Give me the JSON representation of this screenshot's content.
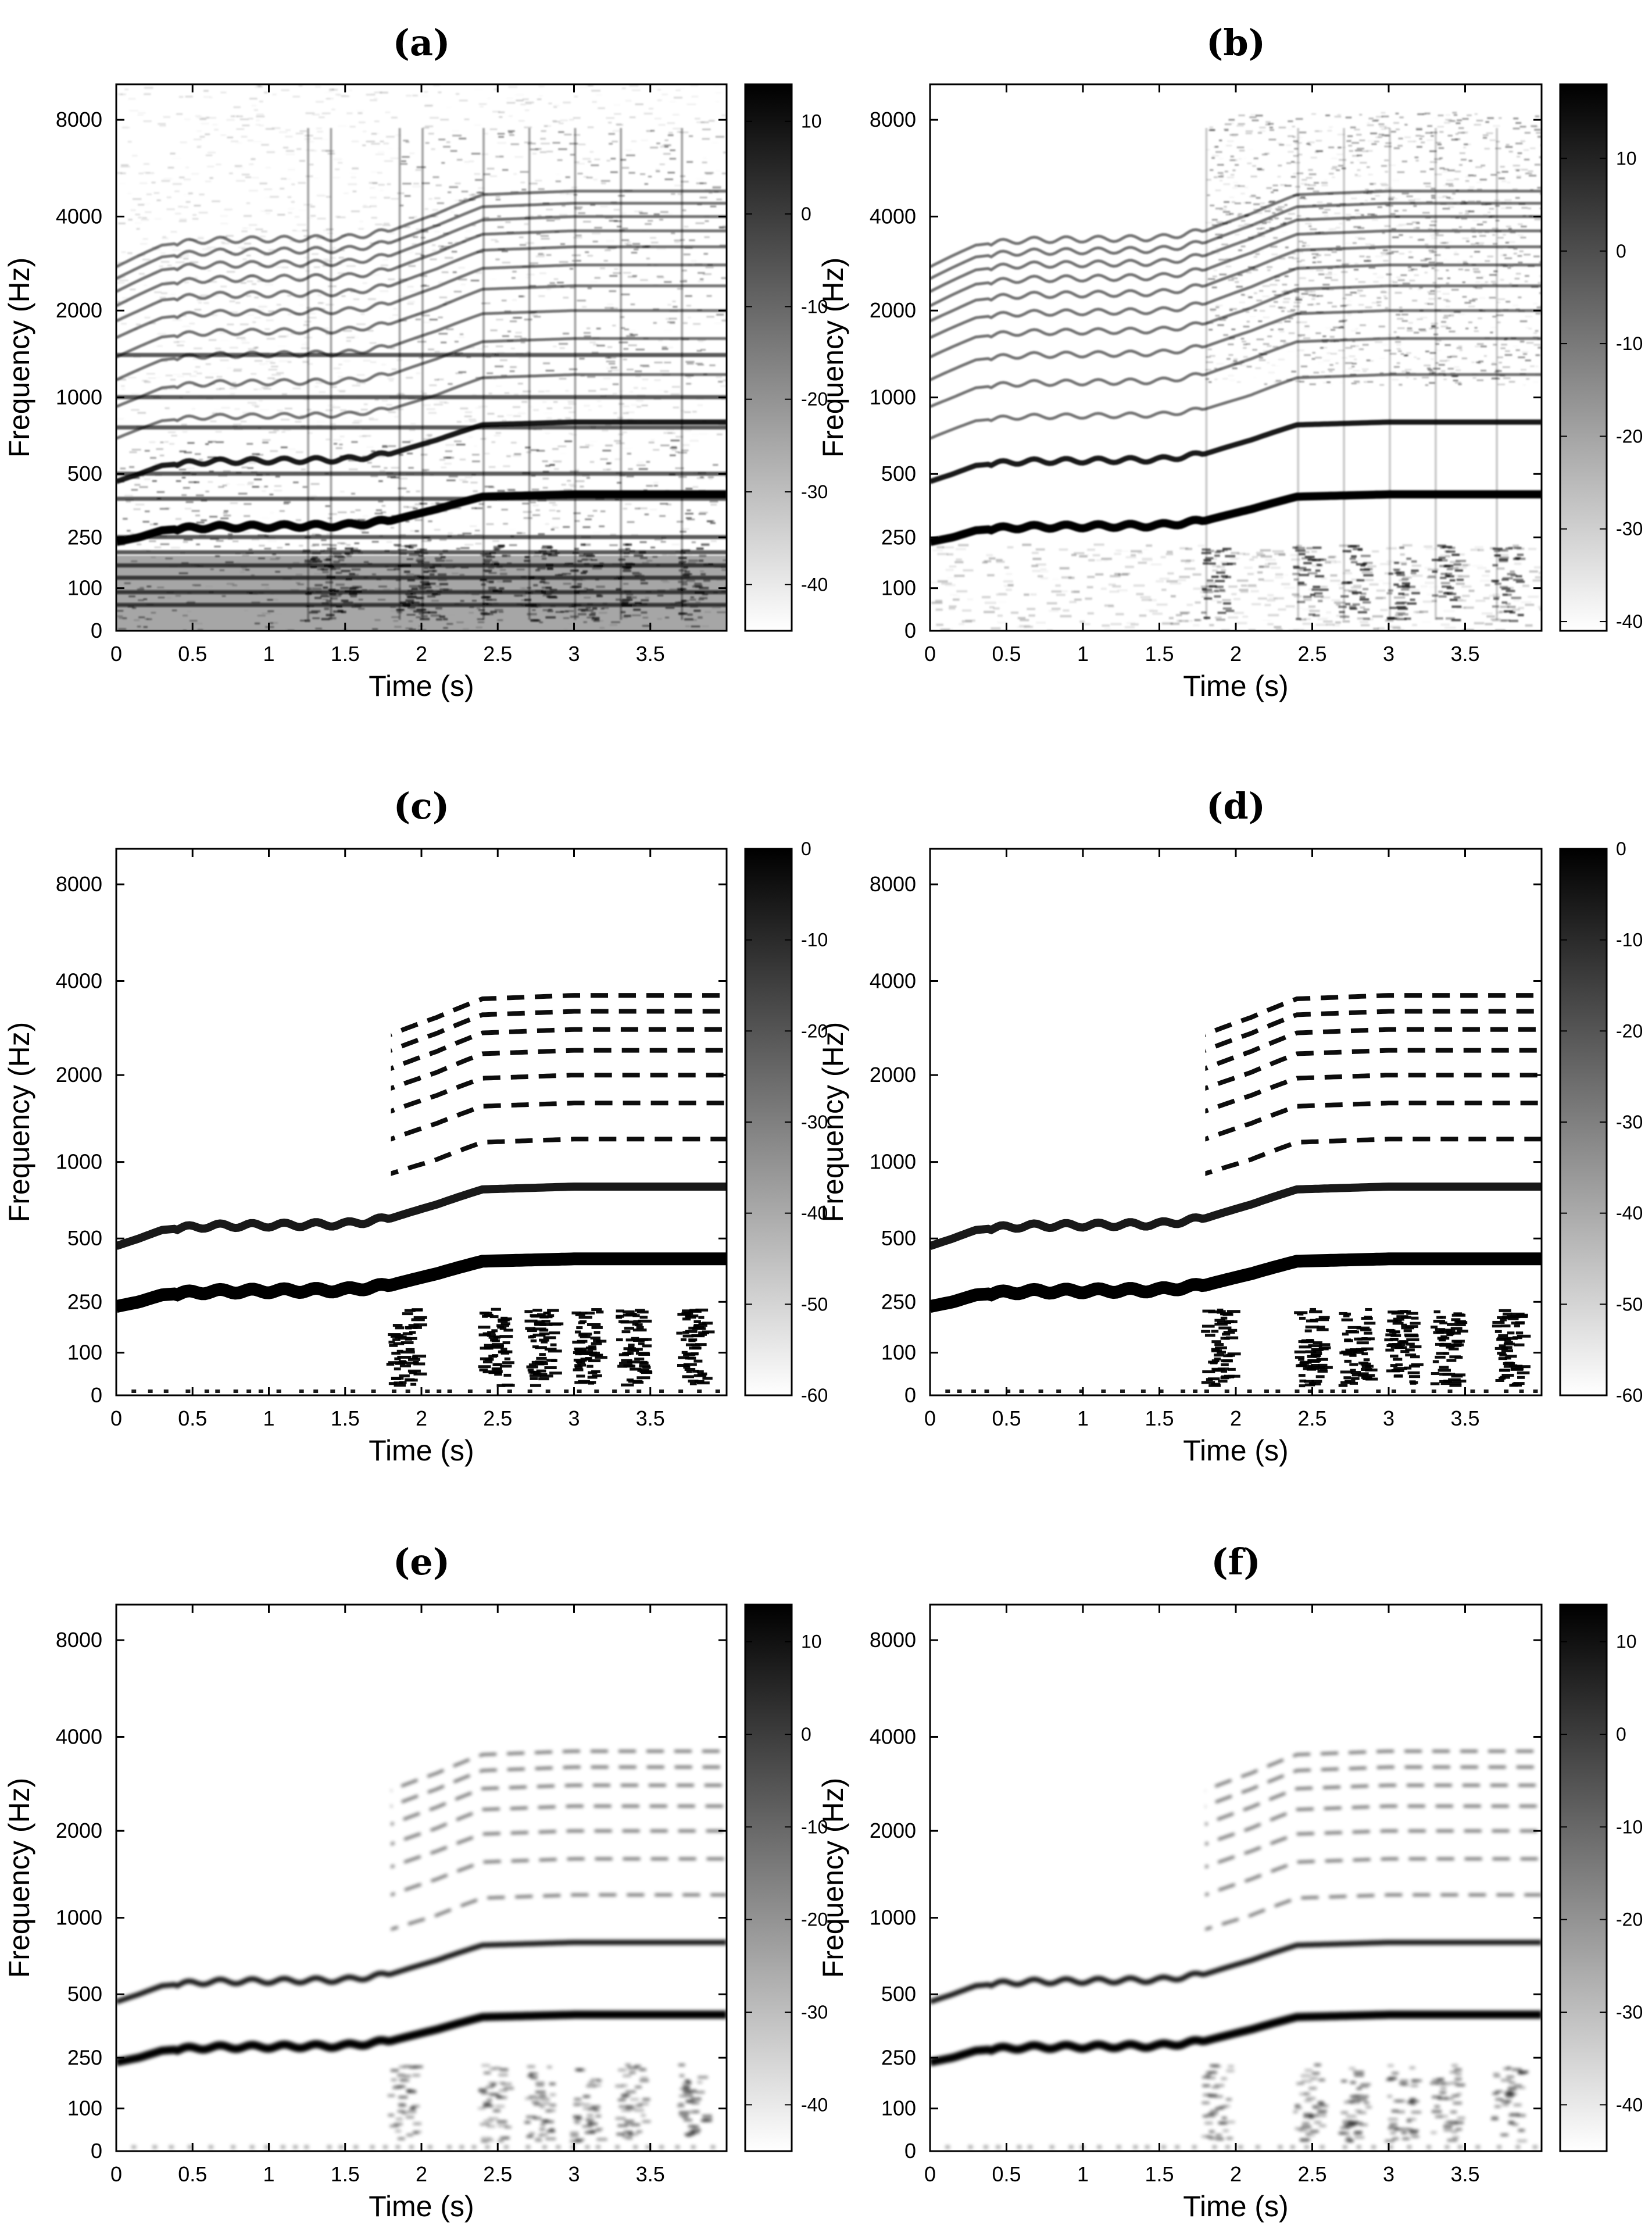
{
  "colors": {
    "background": "#ffffff",
    "axis": "#000000",
    "intensity_dark": "#000000",
    "intensity_light": "#ffffff"
  },
  "panels": [
    {
      "id": "a",
      "label": "(a)",
      "xlabel": "Time (s)",
      "ylabel": "Frequency (Hz)",
      "x_ticks": [
        "0",
        "0.5",
        "1",
        "1.5",
        "2",
        "2.5",
        "3",
        "3.5"
      ],
      "y_ticks": [
        "0",
        "100",
        "250",
        "500",
        "1000",
        "2000",
        "4000",
        "8000"
      ],
      "colorbar_ticks": [
        "10",
        "0",
        "-10",
        "-20",
        "-30",
        "-40"
      ]
    },
    {
      "id": "b",
      "label": "(b)",
      "xlabel": "Time (s)",
      "ylabel": "Frequency (Hz)",
      "x_ticks": [
        "0",
        "0.5",
        "1",
        "1.5",
        "2",
        "2.5",
        "3",
        "3.5"
      ],
      "y_ticks": [
        "0",
        "100",
        "250",
        "500",
        "1000",
        "2000",
        "4000",
        "8000"
      ],
      "colorbar_ticks": [
        "10",
        "0",
        "-10",
        "-20",
        "-30",
        "-40"
      ]
    },
    {
      "id": "c",
      "label": "(c)",
      "xlabel": "Time (s)",
      "ylabel": "Frequency (Hz)",
      "x_ticks": [
        "0",
        "0.5",
        "1",
        "1.5",
        "2",
        "2.5",
        "3",
        "3.5"
      ],
      "y_ticks": [
        "0",
        "100",
        "250",
        "500",
        "1000",
        "2000",
        "4000",
        "8000"
      ],
      "colorbar_ticks": [
        "0",
        "-10",
        "-20",
        "-30",
        "-40",
        "-50",
        "-60"
      ]
    },
    {
      "id": "d",
      "label": "(d)",
      "xlabel": "Time (s)",
      "ylabel": "Frequency (Hz)",
      "x_ticks": [
        "0",
        "0.5",
        "1",
        "1.5",
        "2",
        "2.5",
        "3",
        "3.5"
      ],
      "y_ticks": [
        "0",
        "100",
        "250",
        "500",
        "1000",
        "2000",
        "4000",
        "8000"
      ],
      "colorbar_ticks": [
        "0",
        "-10",
        "-20",
        "-30",
        "-40",
        "-50",
        "-60"
      ]
    },
    {
      "id": "e",
      "label": "(e)",
      "xlabel": "Time (s)",
      "ylabel": "Frequency (Hz)",
      "x_ticks": [
        "0",
        "0.5",
        "1",
        "1.5",
        "2",
        "2.5",
        "3",
        "3.5"
      ],
      "y_ticks": [
        "0",
        "100",
        "250",
        "500",
        "1000",
        "2000",
        "4000",
        "8000"
      ],
      "colorbar_ticks": [
        "10",
        "0",
        "-10",
        "-20",
        "-30",
        "-40"
      ]
    },
    {
      "id": "f",
      "label": "(f)",
      "xlabel": "Time (s)",
      "ylabel": "Frequency (Hz)",
      "x_ticks": [
        "0",
        "0.5",
        "1",
        "1.5",
        "2",
        "2.5",
        "3",
        "3.5"
      ],
      "y_ticks": [
        "0",
        "100",
        "250",
        "500",
        "1000",
        "2000",
        "4000",
        "8000"
      ],
      "colorbar_ticks": [
        "10",
        "0",
        "-10",
        "-20",
        "-30",
        "-40"
      ]
    }
  ],
  "chart_data": [
    {
      "type": "heatmap",
      "title": "(a)",
      "xlabel": "Time (s)",
      "ylabel": "Frequency (Hz)",
      "xlim": [
        0,
        4
      ],
      "y_scale": "ERB-like (0, 100, 250, 500, 1000, 2000, 4000, 8000)",
      "colorbar_range": [
        -45,
        14
      ],
      "colorbar_ticks": [
        10,
        0,
        -10,
        -20,
        -30,
        -40
      ],
      "features": {
        "vocal_f0_hz": {
          "t": [
            0,
            0.3,
            0.6,
            1.0,
            1.5,
            1.8,
            2.1,
            2.4,
            3.0,
            3.5,
            4.0
          ],
          "f": [
            230,
            270,
            280,
            282,
            285,
            300,
            340,
            390,
            400,
            400,
            400
          ]
        },
        "accompaniment_onsets_s": [
          1.25,
          1.4,
          1.85,
          2.0,
          2.4,
          2.7,
          3.0,
          3.3,
          3.7
        ],
        "steady_partials_hz": [
          60,
          90,
          120,
          150,
          190,
          250,
          380,
          500,
          760,
          1000,
          1400
        ]
      }
    },
    {
      "type": "heatmap",
      "title": "(b)",
      "xlabel": "Time (s)",
      "ylabel": "Frequency (Hz)",
      "xlim": [
        0,
        4
      ],
      "colorbar_range": [
        -41,
        18
      ],
      "colorbar_ticks": [
        10,
        0,
        -10,
        -20,
        -30,
        -40
      ],
      "features": {
        "vocal_f0_hz": {
          "t": [
            0,
            0.3,
            0.6,
            1.0,
            1.5,
            1.8,
            2.1,
            2.4,
            3.0,
            3.5,
            4.0
          ],
          "f": [
            230,
            270,
            280,
            282,
            285,
            300,
            340,
            390,
            400,
            400,
            400
          ]
        },
        "onsets_s": [
          1.8,
          2.4,
          2.7,
          3.0,
          3.3,
          3.7
        ]
      }
    },
    {
      "type": "heatmap",
      "title": "(c)",
      "xlabel": "Time (s)",
      "ylabel": "Frequency (Hz)",
      "xlim": [
        0,
        4
      ],
      "colorbar_range": [
        -60,
        0
      ],
      "colorbar_ticks": [
        0,
        -10,
        -20,
        -30,
        -40,
        -50,
        -60
      ],
      "features": {
        "vocal_f0_hz": {
          "t": [
            0,
            0.3,
            0.6,
            1.0,
            1.5,
            1.8,
            2.1,
            2.4,
            3.0,
            3.5,
            4.0
          ],
          "f": [
            230,
            270,
            280,
            282,
            285,
            300,
            340,
            390,
            400,
            400,
            400
          ]
        },
        "onsets_s": [
          1.8,
          2.4,
          2.7,
          3.0,
          3.3,
          3.7
        ]
      }
    },
    {
      "type": "heatmap",
      "title": "(d)",
      "xlabel": "Time (s)",
      "ylabel": "Frequency (Hz)",
      "xlim": [
        0,
        4
      ],
      "colorbar_range": [
        -60,
        0
      ],
      "colorbar_ticks": [
        0,
        -10,
        -20,
        -30,
        -40,
        -50,
        -60
      ],
      "features": {
        "vocal_f0_hz": {
          "t": [
            0,
            0.3,
            0.6,
            1.0,
            1.5,
            1.8,
            2.1,
            2.4,
            3.0,
            3.5,
            4.0
          ],
          "f": [
            230,
            270,
            280,
            282,
            285,
            300,
            340,
            390,
            400,
            400,
            400
          ]
        },
        "onsets_s": [
          1.8,
          2.4,
          2.7,
          3.0,
          3.3,
          3.7
        ]
      }
    },
    {
      "type": "heatmap",
      "title": "(e)",
      "xlabel": "Time (s)",
      "ylabel": "Frequency (Hz)",
      "xlim": [
        0,
        4
      ],
      "colorbar_range": [
        -45,
        14
      ],
      "colorbar_ticks": [
        10,
        0,
        -10,
        -20,
        -30,
        -40
      ],
      "features": {
        "vocal_f0_hz": {
          "t": [
            0,
            0.3,
            0.6,
            1.0,
            1.5,
            1.8,
            2.1,
            2.4,
            3.0,
            3.5,
            4.0
          ],
          "f": [
            230,
            270,
            280,
            282,
            285,
            300,
            340,
            390,
            400,
            400,
            400
          ]
        },
        "onsets_s": [
          1.8,
          2.4,
          2.7,
          3.0,
          3.3,
          3.7
        ]
      }
    },
    {
      "type": "heatmap",
      "title": "(f)",
      "xlabel": "Time (s)",
      "ylabel": "Frequency (Hz)",
      "xlim": [
        0,
        4
      ],
      "colorbar_range": [
        -45,
        14
      ],
      "colorbar_ticks": [
        10,
        0,
        -10,
        -20,
        -30,
        -40
      ],
      "features": {
        "vocal_f0_hz": {
          "t": [
            0,
            0.3,
            0.6,
            1.0,
            1.5,
            1.8,
            2.1,
            2.4,
            3.0,
            3.5,
            4.0
          ],
          "f": [
            230,
            270,
            280,
            282,
            285,
            300,
            340,
            390,
            400,
            400,
            400
          ]
        },
        "onsets_s": [
          1.8,
          2.4,
          2.7,
          3.0,
          3.3,
          3.7
        ]
      }
    }
  ]
}
